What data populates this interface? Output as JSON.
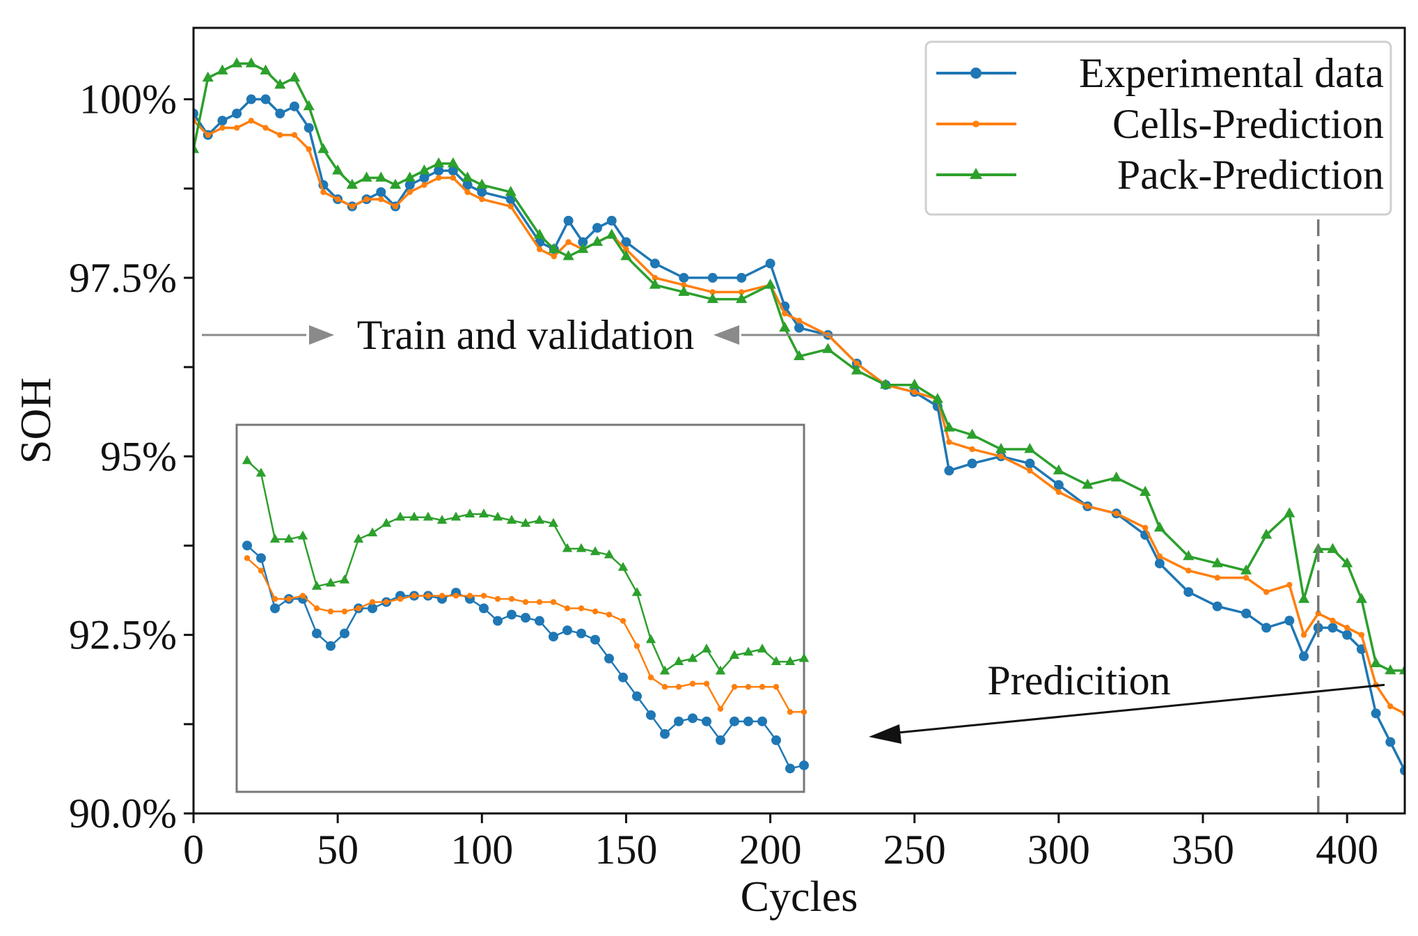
{
  "chart_data": {
    "type": "line",
    "title": "",
    "xlabel": "Cycles",
    "ylabel": "SOH",
    "xlim": [
      0,
      420
    ],
    "ylim": [
      90.0,
      101.0
    ],
    "x_ticks": [
      0,
      50,
      100,
      150,
      200,
      250,
      300,
      350,
      400
    ],
    "x_tick_labels": [
      "0",
      "50",
      "100",
      "150",
      "200",
      "250",
      "300",
      "350",
      "400"
    ],
    "y_ticks": [
      90.0,
      92.5,
      95,
      97.5,
      100
    ],
    "y_tick_labels": [
      "90.0%",
      "92.5%",
      "95%",
      "97.5%",
      "100%"
    ],
    "legend_position": "top-right",
    "split_cycle": 390,
    "series": [
      {
        "name": "Experimental data",
        "color": "#1f77b4",
        "marker": "circle",
        "x": [
          0,
          5,
          10,
          15,
          20,
          25,
          30,
          35,
          40,
          45,
          50,
          55,
          60,
          65,
          70,
          75,
          80,
          85,
          90,
          95,
          100,
          110,
          120,
          125,
          130,
          135,
          140,
          145,
          150,
          160,
          170,
          180,
          190,
          200,
          205,
          210,
          220,
          230,
          240,
          250,
          258,
          262,
          270,
          280,
          290,
          300,
          310,
          320,
          330,
          335,
          345,
          355,
          365,
          372,
          380,
          385,
          390,
          395,
          400,
          405,
          410,
          415,
          420
        ],
        "values": [
          99.8,
          99.5,
          99.7,
          99.8,
          100.0,
          100.0,
          99.8,
          99.9,
          99.6,
          98.8,
          98.6,
          98.5,
          98.6,
          98.7,
          98.5,
          98.8,
          98.9,
          99.0,
          99.0,
          98.8,
          98.7,
          98.6,
          98.0,
          97.9,
          98.3,
          98.0,
          98.2,
          98.3,
          98.0,
          97.7,
          97.5,
          97.5,
          97.5,
          97.7,
          97.1,
          96.8,
          96.7,
          96.3,
          96.0,
          95.9,
          95.7,
          94.8,
          94.9,
          95.0,
          94.9,
          94.6,
          94.3,
          94.2,
          93.9,
          93.5,
          93.1,
          92.9,
          92.8,
          92.6,
          92.7,
          92.2,
          92.6,
          92.6,
          92.5,
          92.3,
          91.4,
          91.0,
          90.6
        ]
      },
      {
        "name": "Cells-Prediction",
        "color": "#ff7f0e",
        "marker": "small-dot",
        "x": [
          0,
          5,
          10,
          15,
          20,
          25,
          30,
          35,
          40,
          45,
          50,
          55,
          60,
          65,
          70,
          75,
          80,
          85,
          90,
          95,
          100,
          110,
          120,
          125,
          130,
          135,
          140,
          145,
          150,
          160,
          170,
          180,
          190,
          200,
          205,
          210,
          220,
          230,
          240,
          250,
          258,
          262,
          270,
          280,
          290,
          300,
          310,
          320,
          330,
          335,
          345,
          355,
          365,
          372,
          380,
          385,
          390,
          395,
          400,
          405,
          410,
          415,
          420
        ],
        "values": [
          99.7,
          99.5,
          99.6,
          99.6,
          99.7,
          99.6,
          99.5,
          99.5,
          99.3,
          98.7,
          98.6,
          98.5,
          98.6,
          98.6,
          98.5,
          98.7,
          98.8,
          98.9,
          98.9,
          98.7,
          98.6,
          98.5,
          97.9,
          97.8,
          98.0,
          97.9,
          98.0,
          98.1,
          97.9,
          97.5,
          97.4,
          97.3,
          97.3,
          97.4,
          97.0,
          96.9,
          96.7,
          96.3,
          96.0,
          95.9,
          95.8,
          95.2,
          95.1,
          95.0,
          94.8,
          94.5,
          94.3,
          94.2,
          94.0,
          93.6,
          93.4,
          93.3,
          93.3,
          93.1,
          93.2,
          92.5,
          92.8,
          92.7,
          92.6,
          92.5,
          91.8,
          91.5,
          91.4
        ]
      },
      {
        "name": "Pack-Prediction",
        "color": "#2ca02c",
        "marker": "triangle",
        "x": [
          0,
          5,
          10,
          15,
          20,
          25,
          30,
          35,
          40,
          45,
          50,
          55,
          60,
          65,
          70,
          75,
          80,
          85,
          90,
          95,
          100,
          110,
          120,
          125,
          130,
          135,
          140,
          145,
          150,
          160,
          170,
          180,
          190,
          200,
          205,
          210,
          220,
          230,
          240,
          250,
          258,
          262,
          270,
          280,
          290,
          300,
          310,
          320,
          330,
          335,
          345,
          355,
          365,
          372,
          380,
          385,
          390,
          395,
          400,
          405,
          410,
          415,
          420
        ],
        "values": [
          99.3,
          100.3,
          100.4,
          100.5,
          100.5,
          100.4,
          100.2,
          100.3,
          99.9,
          99.3,
          99.0,
          98.8,
          98.9,
          98.9,
          98.8,
          98.9,
          99.0,
          99.1,
          99.1,
          98.9,
          98.8,
          98.7,
          98.1,
          97.9,
          97.8,
          97.9,
          98.0,
          98.1,
          97.8,
          97.4,
          97.3,
          97.2,
          97.2,
          97.4,
          96.8,
          96.4,
          96.5,
          96.2,
          96.0,
          96.0,
          95.8,
          95.4,
          95.3,
          95.1,
          95.1,
          94.8,
          94.6,
          94.7,
          94.5,
          94.0,
          93.6,
          93.5,
          93.4,
          93.9,
          94.2,
          93.0,
          93.7,
          93.7,
          93.5,
          93.0,
          92.1,
          92.0,
          92.0
        ]
      }
    ],
    "annotations": [
      {
        "text": "Train and validation",
        "type": "double-arrow-span",
        "x_from": 0,
        "x_to": 390,
        "y": 96.7
      },
      {
        "text": "Predicition",
        "type": "arrow",
        "x": 413,
        "y": 91.8,
        "points_to": "inset"
      }
    ],
    "inset": {
      "description_range_cycles": [
        390,
        420
      ],
      "series": [
        {
          "name": "Experimental data",
          "values": [
            94.1,
            93.9,
            93.1,
            93.25,
            93.25,
            92.7,
            92.5,
            92.7,
            93.1,
            93.1,
            93.2,
            93.3,
            93.3,
            93.3,
            93.25,
            93.35,
            93.25,
            93.1,
            92.9,
            93.0,
            92.95,
            92.9,
            92.65,
            92.75,
            92.7,
            92.6,
            92.3,
            92.0,
            91.7,
            91.4,
            91.1,
            91.3,
            91.35,
            91.3,
            91.0,
            91.3,
            91.3,
            91.3,
            91.0,
            90.55,
            90.6
          ]
        },
        {
          "name": "Cells-Prediction",
          "values": [
            93.9,
            93.7,
            93.25,
            93.25,
            93.3,
            93.1,
            93.05,
            93.05,
            93.1,
            93.2,
            93.2,
            93.25,
            93.3,
            93.3,
            93.3,
            93.3,
            93.3,
            93.3,
            93.25,
            93.25,
            93.2,
            93.2,
            93.2,
            93.1,
            93.1,
            93.05,
            93.0,
            92.9,
            92.5,
            92.0,
            91.85,
            91.85,
            91.9,
            91.9,
            91.5,
            91.85,
            91.85,
            91.85,
            91.85,
            91.45,
            91.45
          ]
        },
        {
          "name": "Pack-Prediction",
          "values": [
            95.45,
            95.25,
            94.2,
            94.2,
            94.25,
            93.45,
            93.5,
            93.55,
            94.2,
            94.3,
            94.45,
            94.55,
            94.55,
            94.55,
            94.5,
            94.55,
            94.6,
            94.6,
            94.55,
            94.5,
            94.45,
            94.5,
            94.45,
            94.05,
            94.05,
            94.0,
            93.95,
            93.75,
            93.35,
            92.6,
            92.1,
            92.25,
            92.3,
            92.45,
            92.1,
            92.35,
            92.4,
            92.45,
            92.25,
            92.25,
            92.3
          ]
        }
      ],
      "ylim": [
        90.4,
        95.8
      ]
    }
  }
}
